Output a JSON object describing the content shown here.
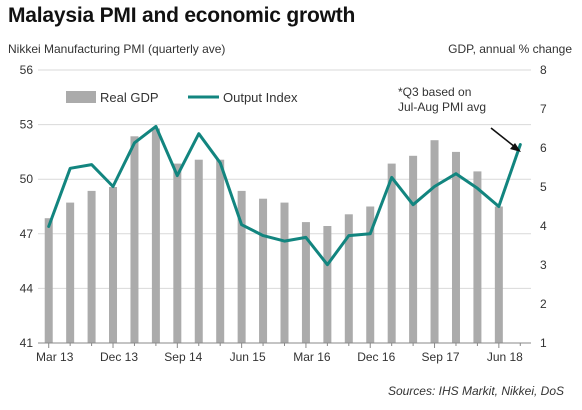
{
  "title": "Malaysia PMI and economic growth",
  "source": "Sources: IHS Markit, Nikkei, DoS",
  "annotation": [
    "*Q3 based on",
    "Jul-Aug PMI avg"
  ],
  "colors": {
    "bar": "#ababab",
    "line": "#12857f",
    "grid": "#d9d9d9",
    "axis": "#888888"
  },
  "chart_data": {
    "type": "bar+line",
    "left_axis": {
      "label": "Nikkei Manufacturing PMI (quarterly ave)",
      "range": [
        41,
        56
      ],
      "ticks": [
        41,
        44,
        47,
        50,
        53,
        56
      ]
    },
    "right_axis": {
      "label": "GDP, annual % change",
      "range": [
        1,
        8
      ],
      "ticks": [
        1,
        2,
        3,
        4,
        5,
        6,
        7,
        8
      ]
    },
    "x_tick_labels": [
      "Mar 13",
      "Dec 13",
      "Sep 14",
      "Jun 15",
      "Mar 16",
      "Dec 16",
      "Sep 17",
      "Jun 18"
    ],
    "grid": "horizontal",
    "legend_position": "top-left",
    "categories": [
      "Mar 13",
      "Jun 13",
      "Sep 13",
      "Dec 13",
      "Mar 14",
      "Jun 14",
      "Sep 14",
      "Dec 14",
      "Mar 15",
      "Jun 15",
      "Sep 15",
      "Dec 15",
      "Mar 16",
      "Jun 16",
      "Sep 16",
      "Dec 16",
      "Mar 17",
      "Jun 17",
      "Sep 17",
      "Dec 17",
      "Mar 18",
      "Jun 18",
      "Sep 18"
    ],
    "series": [
      {
        "name": "Real GDP",
        "type": "bar",
        "axis": "right",
        "values": [
          4.2,
          4.6,
          4.9,
          5.0,
          6.3,
          6.5,
          5.6,
          5.7,
          5.7,
          4.9,
          4.7,
          4.6,
          4.1,
          4.0,
          4.3,
          4.5,
          5.6,
          5.8,
          6.2,
          5.9,
          5.4,
          4.5,
          null
        ]
      },
      {
        "name": "Output Index",
        "type": "line",
        "axis": "left",
        "values": [
          47.4,
          50.6,
          50.8,
          49.6,
          52.0,
          52.9,
          50.2,
          52.5,
          50.9,
          47.5,
          46.9,
          46.6,
          46.8,
          45.3,
          46.9,
          47.0,
          50.1,
          48.6,
          49.6,
          50.3,
          49.5,
          48.5,
          51.9
        ]
      }
    ]
  }
}
